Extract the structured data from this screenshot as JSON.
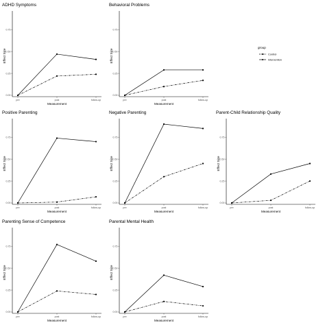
{
  "chart_data": [
    {
      "type": "line",
      "title": "ADHD Symptoms",
      "xlabel": "Measurement",
      "ylabel": "Effect Size",
      "categories": [
        "pre",
        "post",
        "follow-up"
      ],
      "yticks": [
        "0.00",
        "0.25",
        "0.50",
        "0.75"
      ],
      "ylim": [
        0,
        0.9
      ],
      "series": [
        {
          "name": "Control",
          "values": [
            0.0,
            0.22,
            0.24
          ]
        },
        {
          "name": "Intervention",
          "values": [
            0.0,
            0.47,
            0.41
          ]
        }
      ]
    },
    {
      "type": "line",
      "title": "Behavioral Problems",
      "xlabel": "Measurement",
      "ylabel": "Effect Size",
      "categories": [
        "pre",
        "post",
        "follow-up"
      ],
      "yticks": [
        "0.00",
        "0.25",
        "0.50",
        "0.75"
      ],
      "ylim": [
        0,
        0.9
      ],
      "series": [
        {
          "name": "Control",
          "values": [
            0.0,
            0.1,
            0.17
          ]
        },
        {
          "name": "Intervention",
          "values": [
            0.0,
            0.29,
            0.29
          ]
        }
      ]
    },
    {
      "type": "line",
      "title": "Positive Parenting",
      "xlabel": "Measurement",
      "ylabel": "Effect Size",
      "categories": [
        "pre",
        "post",
        "follow-up"
      ],
      "yticks": [
        "0.00",
        "0.25",
        "0.50",
        "0.75"
      ],
      "ylim": [
        0,
        0.9
      ],
      "series": [
        {
          "name": "Control",
          "values": [
            0.0,
            0.01,
            0.07
          ]
        },
        {
          "name": "Intervention",
          "values": [
            0.0,
            0.74,
            0.7
          ]
        }
      ]
    },
    {
      "type": "line",
      "title": "Negative Parenting",
      "xlabel": "Measurement",
      "ylabel": "Effect Size",
      "categories": [
        "pre",
        "post",
        "follow-up"
      ],
      "yticks": [
        "0.00",
        "0.25",
        "0.50",
        "0.75"
      ],
      "ylim": [
        0,
        0.9
      ],
      "series": [
        {
          "name": "Control",
          "values": [
            0.0,
            0.3,
            0.45
          ]
        },
        {
          "name": "Intervention",
          "values": [
            0.0,
            0.9,
            0.85
          ]
        }
      ]
    },
    {
      "type": "line",
      "title": "Parent-Child Relationship Quality",
      "xlabel": "Measurement",
      "ylabel": "Effect Size",
      "categories": [
        "pre",
        "post",
        "follow-up"
      ],
      "yticks": [
        "0.00",
        "0.25",
        "0.50",
        "0.75"
      ],
      "ylim": [
        0,
        0.9
      ],
      "series": [
        {
          "name": "Control",
          "values": [
            0.0,
            0.03,
            0.25
          ]
        },
        {
          "name": "Intervention",
          "values": [
            0.0,
            0.33,
            0.45
          ]
        }
      ]
    },
    {
      "type": "line",
      "title": "Parenting Sense of Competence",
      "xlabel": "Measurement",
      "ylabel": "Effect Size",
      "categories": [
        "pre",
        "post",
        "follow-up"
      ],
      "yticks": [
        "0.00",
        "0.25",
        "0.50",
        "0.75"
      ],
      "ylim": [
        0,
        0.9
      ],
      "series": [
        {
          "name": "Control",
          "values": [
            0.0,
            0.24,
            0.2
          ]
        },
        {
          "name": "Intervention",
          "values": [
            0.0,
            0.77,
            0.58
          ]
        }
      ]
    },
    {
      "type": "line",
      "title": "Parental Mental Health",
      "xlabel": "Measurement",
      "ylabel": "Effect Size",
      "categories": [
        "pre",
        "post",
        "follow-up"
      ],
      "yticks": [
        "0.00",
        "0.25",
        "0.50",
        "0.75"
      ],
      "ylim": [
        0,
        0.9
      ],
      "series": [
        {
          "name": "Control",
          "values": [
            0.0,
            0.12,
            0.07
          ]
        },
        {
          "name": "Intervention",
          "values": [
            0.0,
            0.42,
            0.29
          ]
        }
      ]
    }
  ],
  "legend": {
    "title": "group",
    "items": [
      {
        "label": "Control",
        "linetype": "dashed"
      },
      {
        "label": "Intervention",
        "linetype": "solid"
      }
    ]
  },
  "colors": {
    "line": "#000000",
    "background": "#ffffff",
    "tick_text": "#4d4d4d"
  }
}
